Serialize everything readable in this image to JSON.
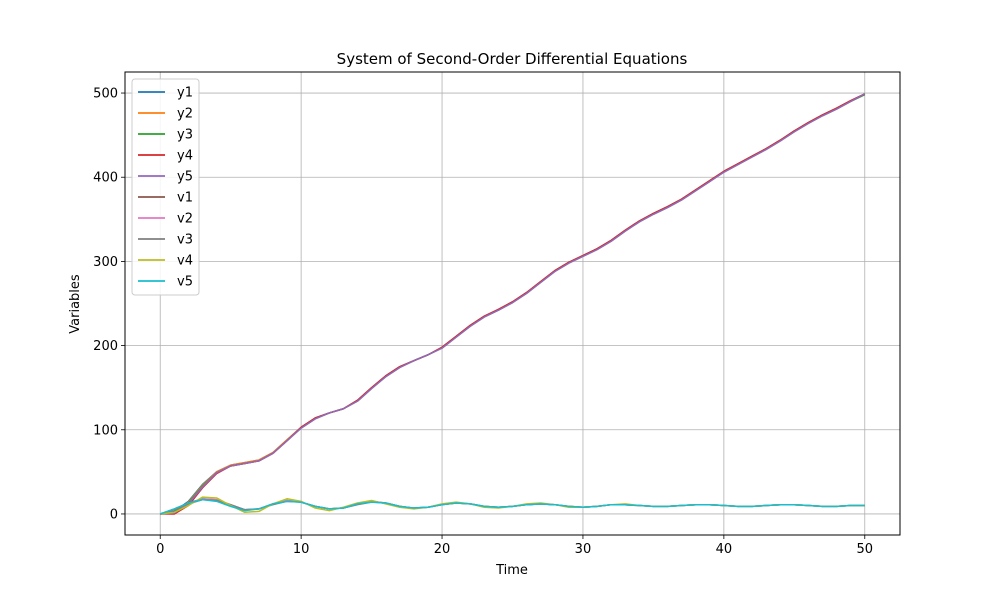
{
  "chart_data": {
    "type": "line",
    "title": "System of Second-Order Differential Equations",
    "xlabel": "Time",
    "ylabel": "Variables",
    "xlim": [
      -2.5,
      52.5
    ],
    "ylim": [
      -25,
      525
    ],
    "xticks": [
      0,
      10,
      20,
      30,
      40,
      50
    ],
    "yticks": [
      0,
      100,
      200,
      300,
      400,
      500
    ],
    "grid": true,
    "legend_position": "upper-left",
    "x": [
      0,
      1,
      2,
      3,
      4,
      5,
      6,
      7,
      8,
      9,
      10,
      11,
      12,
      13,
      14,
      15,
      16,
      17,
      18,
      19,
      20,
      21,
      22,
      23,
      24,
      25,
      26,
      27,
      28,
      29,
      30,
      31,
      32,
      33,
      34,
      35,
      36,
      37,
      38,
      39,
      40,
      41,
      42,
      43,
      44,
      45,
      46,
      47,
      48,
      49,
      50
    ],
    "series": [
      {
        "name": "y1",
        "color": "#1f77b4",
        "values": [
          0,
          3,
          15,
          35,
          50,
          58,
          61,
          64,
          73,
          88,
          103,
          114,
          120,
          125,
          135,
          150,
          164,
          175,
          182,
          189,
          198,
          211,
          224,
          235,
          243,
          252,
          263,
          276,
          289,
          299,
          307,
          315,
          325,
          337,
          348,
          357,
          365,
          374,
          385,
          396,
          407,
          416,
          425,
          434,
          444,
          455,
          465,
          474,
          482,
          491,
          499
        ]
      },
      {
        "name": "y2",
        "color": "#ff7f0e",
        "values": [
          0,
          2,
          14,
          34,
          50,
          58,
          61,
          64,
          73,
          88,
          103,
          114,
          120,
          125,
          135,
          150,
          164,
          175,
          182,
          189,
          198,
          211,
          224,
          235,
          243,
          252,
          263,
          276,
          289,
          299,
          307,
          315,
          325,
          337,
          348,
          357,
          365,
          374,
          385,
          396,
          407,
          416,
          425,
          434,
          444,
          455,
          465,
          474,
          482,
          491,
          499
        ]
      },
      {
        "name": "y3",
        "color": "#2ca02c",
        "values": [
          0,
          2,
          13,
          33,
          49,
          57,
          60,
          63,
          72,
          87,
          102,
          113,
          120,
          125,
          134,
          149,
          163,
          174,
          182,
          189,
          197,
          210,
          223,
          234,
          242,
          251,
          262,
          275,
          288,
          298,
          306,
          314,
          324,
          336,
          347,
          356,
          364,
          373,
          384,
          395,
          406,
          415,
          424,
          433,
          443,
          454,
          464,
          473,
          481,
          490,
          498
        ]
      },
      {
        "name": "y4",
        "color": "#d62728",
        "values": [
          0,
          0,
          10,
          31,
          48,
          57,
          60,
          63,
          72,
          87,
          103,
          114,
          120,
          125,
          135,
          150,
          164,
          175,
          182,
          189,
          198,
          211,
          224,
          235,
          243,
          252,
          263,
          276,
          289,
          299,
          307,
          315,
          325,
          337,
          348,
          357,
          365,
          374,
          385,
          396,
          407,
          416,
          425,
          434,
          444,
          455,
          465,
          474,
          482,
          491,
          499
        ]
      },
      {
        "name": "y5",
        "color": "#9467bd",
        "values": [
          0,
          1,
          12,
          32,
          49,
          57,
          60,
          63,
          72,
          87,
          102,
          113,
          120,
          125,
          134,
          149,
          163,
          174,
          182,
          189,
          197,
          210,
          223,
          234,
          242,
          251,
          262,
          275,
          288,
          298,
          306,
          314,
          324,
          336,
          347,
          356,
          364,
          373,
          384,
          395,
          406,
          415,
          424,
          433,
          443,
          454,
          464,
          473,
          481,
          490,
          499
        ]
      },
      {
        "name": "v1",
        "color": "#8c564b",
        "values": [
          0,
          6,
          13,
          18,
          16,
          10,
          5,
          6,
          12,
          16,
          14,
          9,
          6,
          7,
          12,
          15,
          13,
          9,
          7,
          8,
          11,
          13,
          12,
          9,
          8,
          9,
          11,
          12,
          11,
          9,
          8,
          9,
          11,
          11,
          10,
          9,
          9,
          10,
          11,
          11,
          10,
          9,
          9,
          10,
          11,
          11,
          10,
          9,
          9,
          10,
          10
        ]
      },
      {
        "name": "v2",
        "color": "#e377c2",
        "values": [
          0,
          5,
          12,
          18,
          17,
          11,
          5,
          6,
          12,
          16,
          14,
          9,
          6,
          7,
          12,
          15,
          13,
          9,
          7,
          8,
          11,
          13,
          12,
          9,
          8,
          9,
          11,
          12,
          11,
          9,
          8,
          9,
          11,
          11,
          10,
          9,
          9,
          10,
          11,
          11,
          10,
          9,
          9,
          10,
          11,
          11,
          10,
          9,
          9,
          10,
          10
        ]
      },
      {
        "name": "v3",
        "color": "#7f7f7f",
        "values": [
          0,
          5,
          12,
          17,
          16,
          11,
          5,
          6,
          11,
          15,
          14,
          9,
          6,
          7,
          11,
          14,
          13,
          9,
          7,
          8,
          11,
          13,
          12,
          9,
          8,
          9,
          11,
          12,
          11,
          9,
          8,
          9,
          11,
          11,
          10,
          9,
          9,
          10,
          11,
          11,
          10,
          9,
          9,
          10,
          11,
          11,
          10,
          9,
          9,
          10,
          10
        ]
      },
      {
        "name": "v4",
        "color": "#bcbd22",
        "values": [
          0,
          2,
          10,
          20,
          19,
          10,
          2,
          3,
          12,
          18,
          15,
          7,
          4,
          8,
          13,
          16,
          12,
          8,
          6,
          8,
          12,
          14,
          12,
          8,
          7,
          9,
          12,
          13,
          11,
          8,
          8,
          9,
          11,
          12,
          10,
          9,
          9,
          10,
          11,
          11,
          10,
          9,
          9,
          10,
          11,
          11,
          10,
          9,
          9,
          10,
          10
        ]
      },
      {
        "name": "v5",
        "color": "#17becf",
        "values": [
          0,
          6,
          13,
          17,
          15,
          9,
          4,
          6,
          12,
          15,
          14,
          9,
          6,
          7,
          12,
          14,
          13,
          9,
          7,
          8,
          11,
          13,
          12,
          9,
          8,
          9,
          11,
          12,
          11,
          9,
          8,
          9,
          11,
          11,
          10,
          9,
          9,
          10,
          11,
          11,
          10,
          9,
          9,
          10,
          11,
          11,
          10,
          9,
          9,
          10,
          10
        ]
      }
    ]
  }
}
